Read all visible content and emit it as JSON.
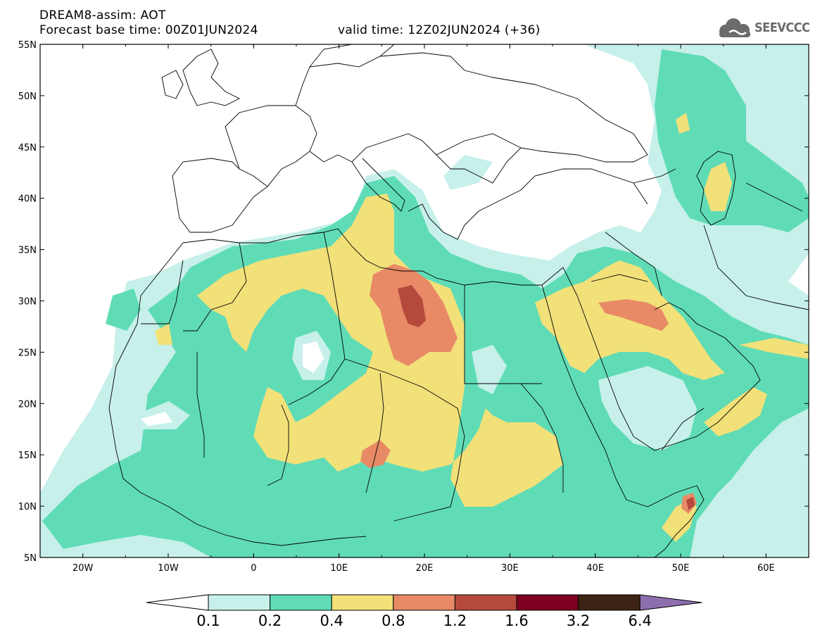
{
  "header": {
    "title": "DREAM8-assim: AOT",
    "base_time": "Forecast base time: 00Z01JUN2024",
    "valid_time": "valid time: 12Z02JUN2024 (+36)"
  },
  "logo": {
    "text": "SEEVCCC",
    "icon": "cloud-icon"
  },
  "axes": {
    "lat_labels": [
      "55N",
      "50N",
      "45N",
      "40N",
      "35N",
      "30N",
      "25N",
      "20N",
      "15N",
      "10N",
      "5N"
    ],
    "lon_labels": [
      "20W",
      "10W",
      "0",
      "10E",
      "20E",
      "30E",
      "40E",
      "50E",
      "60E"
    ],
    "lat_range": [
      5,
      55
    ],
    "lon_range": [
      -25,
      65
    ]
  },
  "colorbar": {
    "labels": [
      "0.1",
      "0.2",
      "0.4",
      "0.8",
      "1.2",
      "1.6",
      "3.2",
      "6.4"
    ],
    "colors": [
      "#ffffff",
      "#c7f0ea",
      "#5fdcb6",
      "#f2e079",
      "#e88a66",
      "#b54a3c",
      "#7d0022",
      "#3c2313",
      "#8e6fae"
    ]
  }
}
